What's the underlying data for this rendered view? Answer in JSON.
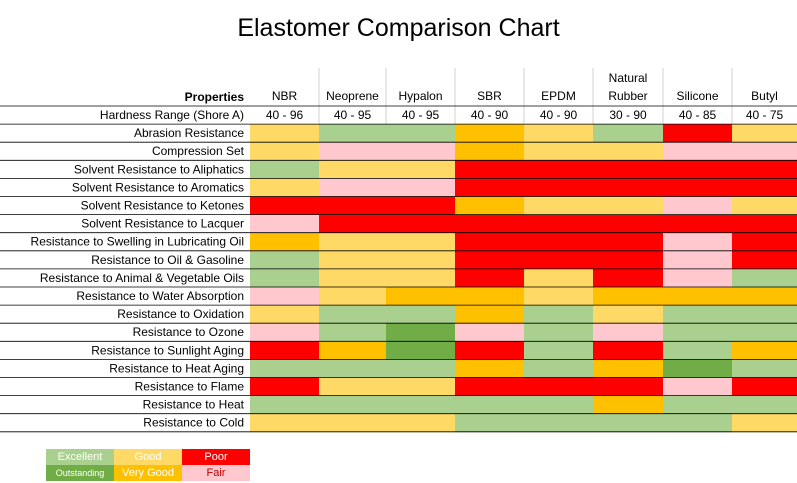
{
  "title": "Elastomer Comparison Chart",
  "colors": {
    "excellent": "#a9d08e",
    "outstanding": "#70ad47",
    "good": "#ffd966",
    "very_good": "#ffc000",
    "poor": "#ff0000",
    "fair": "#ffc7ce"
  },
  "legend": {
    "excellent": "Excellent",
    "outstanding": "Outstanding",
    "good": "Good",
    "very_good": "Very Good",
    "poor": "Poor",
    "fair": "Fair"
  },
  "chart_data": {
    "type": "table",
    "title": "Elastomer Comparison Chart",
    "header_label": "Properties",
    "columns": [
      "NBR",
      "Neoprene",
      "Hypalon",
      "SBR",
      "EPDM",
      "Natural Rubber",
      "Silicone",
      "Butyl"
    ],
    "hardness_label": "Hardness Range (Shore A)",
    "hardness": [
      "40 - 96",
      "40 - 95",
      "40 - 95",
      "40 - 90",
      "40 - 90",
      "30 - 90",
      "40 - 85",
      "40 - 75"
    ],
    "rating_scale": [
      "excellent",
      "outstanding",
      "good",
      "very_good",
      "poor",
      "fair"
    ],
    "rows": [
      {
        "property": "Abrasion Resistance",
        "ratings": [
          "good",
          "excellent",
          "excellent",
          "very_good",
          "good",
          "excellent",
          "poor",
          "good"
        ]
      },
      {
        "property": "Compression Set",
        "ratings": [
          "good",
          "fair",
          "fair",
          "very_good",
          "good",
          "good",
          "fair",
          "fair"
        ]
      },
      {
        "property": "Solvent Resistance to Aliphatics",
        "ratings": [
          "excellent",
          "good",
          "good",
          "poor",
          "poor",
          "poor",
          "poor",
          "poor"
        ]
      },
      {
        "property": "Solvent Resistance to Aromatics",
        "ratings": [
          "good",
          "fair",
          "fair",
          "poor",
          "poor",
          "poor",
          "poor",
          "poor"
        ]
      },
      {
        "property": "Solvent Resistance to Ketones",
        "ratings": [
          "poor",
          "poor",
          "poor",
          "very_good",
          "good",
          "good",
          "fair",
          "good"
        ]
      },
      {
        "property": "Solvent Resistance to Lacquer",
        "ratings": [
          "fair",
          "poor",
          "poor",
          "poor",
          "poor",
          "poor",
          "poor",
          "poor"
        ]
      },
      {
        "property": "Resistance to Swelling in Lubricating Oil",
        "ratings": [
          "very_good",
          "good",
          "good",
          "poor",
          "poor",
          "poor",
          "fair",
          "poor"
        ]
      },
      {
        "property": "Resistance to Oil & Gasoline",
        "ratings": [
          "excellent",
          "good",
          "good",
          "poor",
          "poor",
          "poor",
          "fair",
          "poor"
        ]
      },
      {
        "property": "Resistance to Animal & Vegetable Oils",
        "ratings": [
          "excellent",
          "good",
          "good",
          "poor",
          "good",
          "poor",
          "fair",
          "excellent"
        ]
      },
      {
        "property": "Resistance to Water Absorption",
        "ratings": [
          "fair",
          "good",
          "very_good",
          "very_good",
          "good",
          "very_good",
          "very_good",
          "very_good"
        ]
      },
      {
        "property": "Resistance to Oxidation",
        "ratings": [
          "good",
          "excellent",
          "excellent",
          "very_good",
          "excellent",
          "good",
          "excellent",
          "excellent"
        ]
      },
      {
        "property": "Resistance to Ozone",
        "ratings": [
          "fair",
          "excellent",
          "outstanding",
          "fair",
          "excellent",
          "fair",
          "excellent",
          "excellent"
        ]
      },
      {
        "property": "Resistance to Sunlight Aging",
        "ratings": [
          "poor",
          "very_good",
          "outstanding",
          "poor",
          "excellent",
          "poor",
          "excellent",
          "very_good"
        ]
      },
      {
        "property": "Resistance to Heat Aging",
        "ratings": [
          "excellent",
          "excellent",
          "excellent",
          "very_good",
          "excellent",
          "very_good",
          "outstanding",
          "excellent"
        ]
      },
      {
        "property": "Resistance to Flame",
        "ratings": [
          "poor",
          "good",
          "good",
          "poor",
          "poor",
          "poor",
          "fair",
          "poor"
        ]
      },
      {
        "property": "Resistance to Heat",
        "ratings": [
          "excellent",
          "excellent",
          "excellent",
          "excellent",
          "excellent",
          "very_good",
          "excellent",
          "excellent"
        ]
      },
      {
        "property": "Resistance to Cold",
        "ratings": [
          "good",
          "good",
          "good",
          "excellent",
          "excellent",
          "excellent",
          "excellent",
          "good"
        ]
      }
    ]
  }
}
